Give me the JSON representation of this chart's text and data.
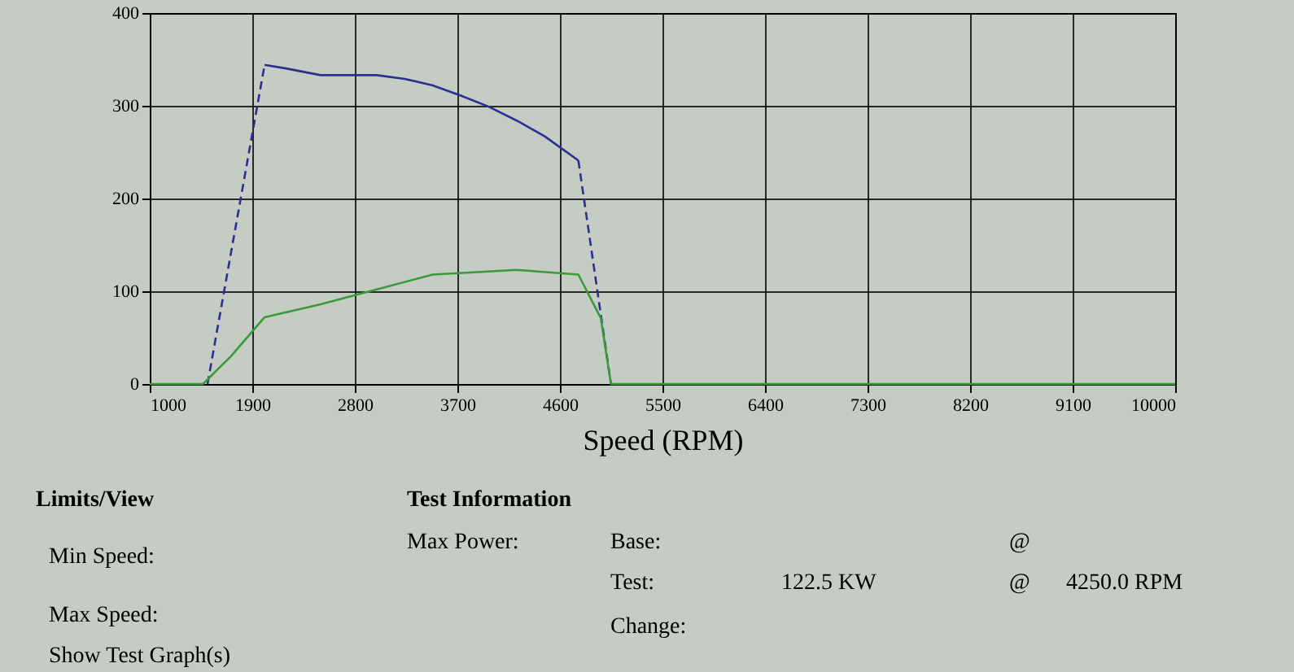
{
  "chart_data": {
    "type": "line",
    "xlabel": "Speed (RPM)",
    "xlim": [
      1000,
      10000
    ],
    "xticks": [
      1000,
      1900,
      2800,
      3700,
      4600,
      5500,
      6400,
      7300,
      8200,
      9100,
      10000
    ],
    "ylim": [
      0,
      400
    ],
    "yticks": [
      0,
      100,
      200,
      300,
      400
    ],
    "grid": true,
    "marker": "none",
    "series": [
      {
        "color": "#2e2e90",
        "line_style": "dashed",
        "x": [
          1507,
          2008
        ],
        "values": [
          0,
          344
        ]
      },
      {
        "color": "#2e2e90",
        "line_style": "solid",
        "x": [
          2008,
          2205,
          2500,
          2992,
          3238,
          3484,
          3730,
          3975,
          4221,
          4467,
          4762
        ],
        "values": [
          344,
          340,
          333,
          333,
          329,
          322,
          311,
          299,
          284,
          267,
          241
        ]
      },
      {
        "color": "#2e2e90",
        "line_style": "dashed",
        "x": [
          4762,
          5048
        ],
        "values": [
          241,
          0
        ]
      },
      {
        "color": "#3a9a3a",
        "line_style": "solid",
        "x": [
          1000,
          1467,
          1713,
          2008,
          2500,
          2992,
          3484,
          4221,
          4762,
          4959,
          5048,
          10000
        ],
        "values": [
          0,
          0,
          30,
          72,
          86,
          102,
          118,
          123,
          118,
          71,
          0,
          0
        ]
      }
    ],
    "annotations": [
      "Limits/View",
      "Min Speed:",
      "Max Speed:",
      "Show Test Graph(s)",
      "Test Information",
      "Max Power:",
      "Base:",
      "@",
      "Test:",
      "122.5  KW",
      "@",
      "4250.0  RPM",
      "Change:"
    ]
  }
}
